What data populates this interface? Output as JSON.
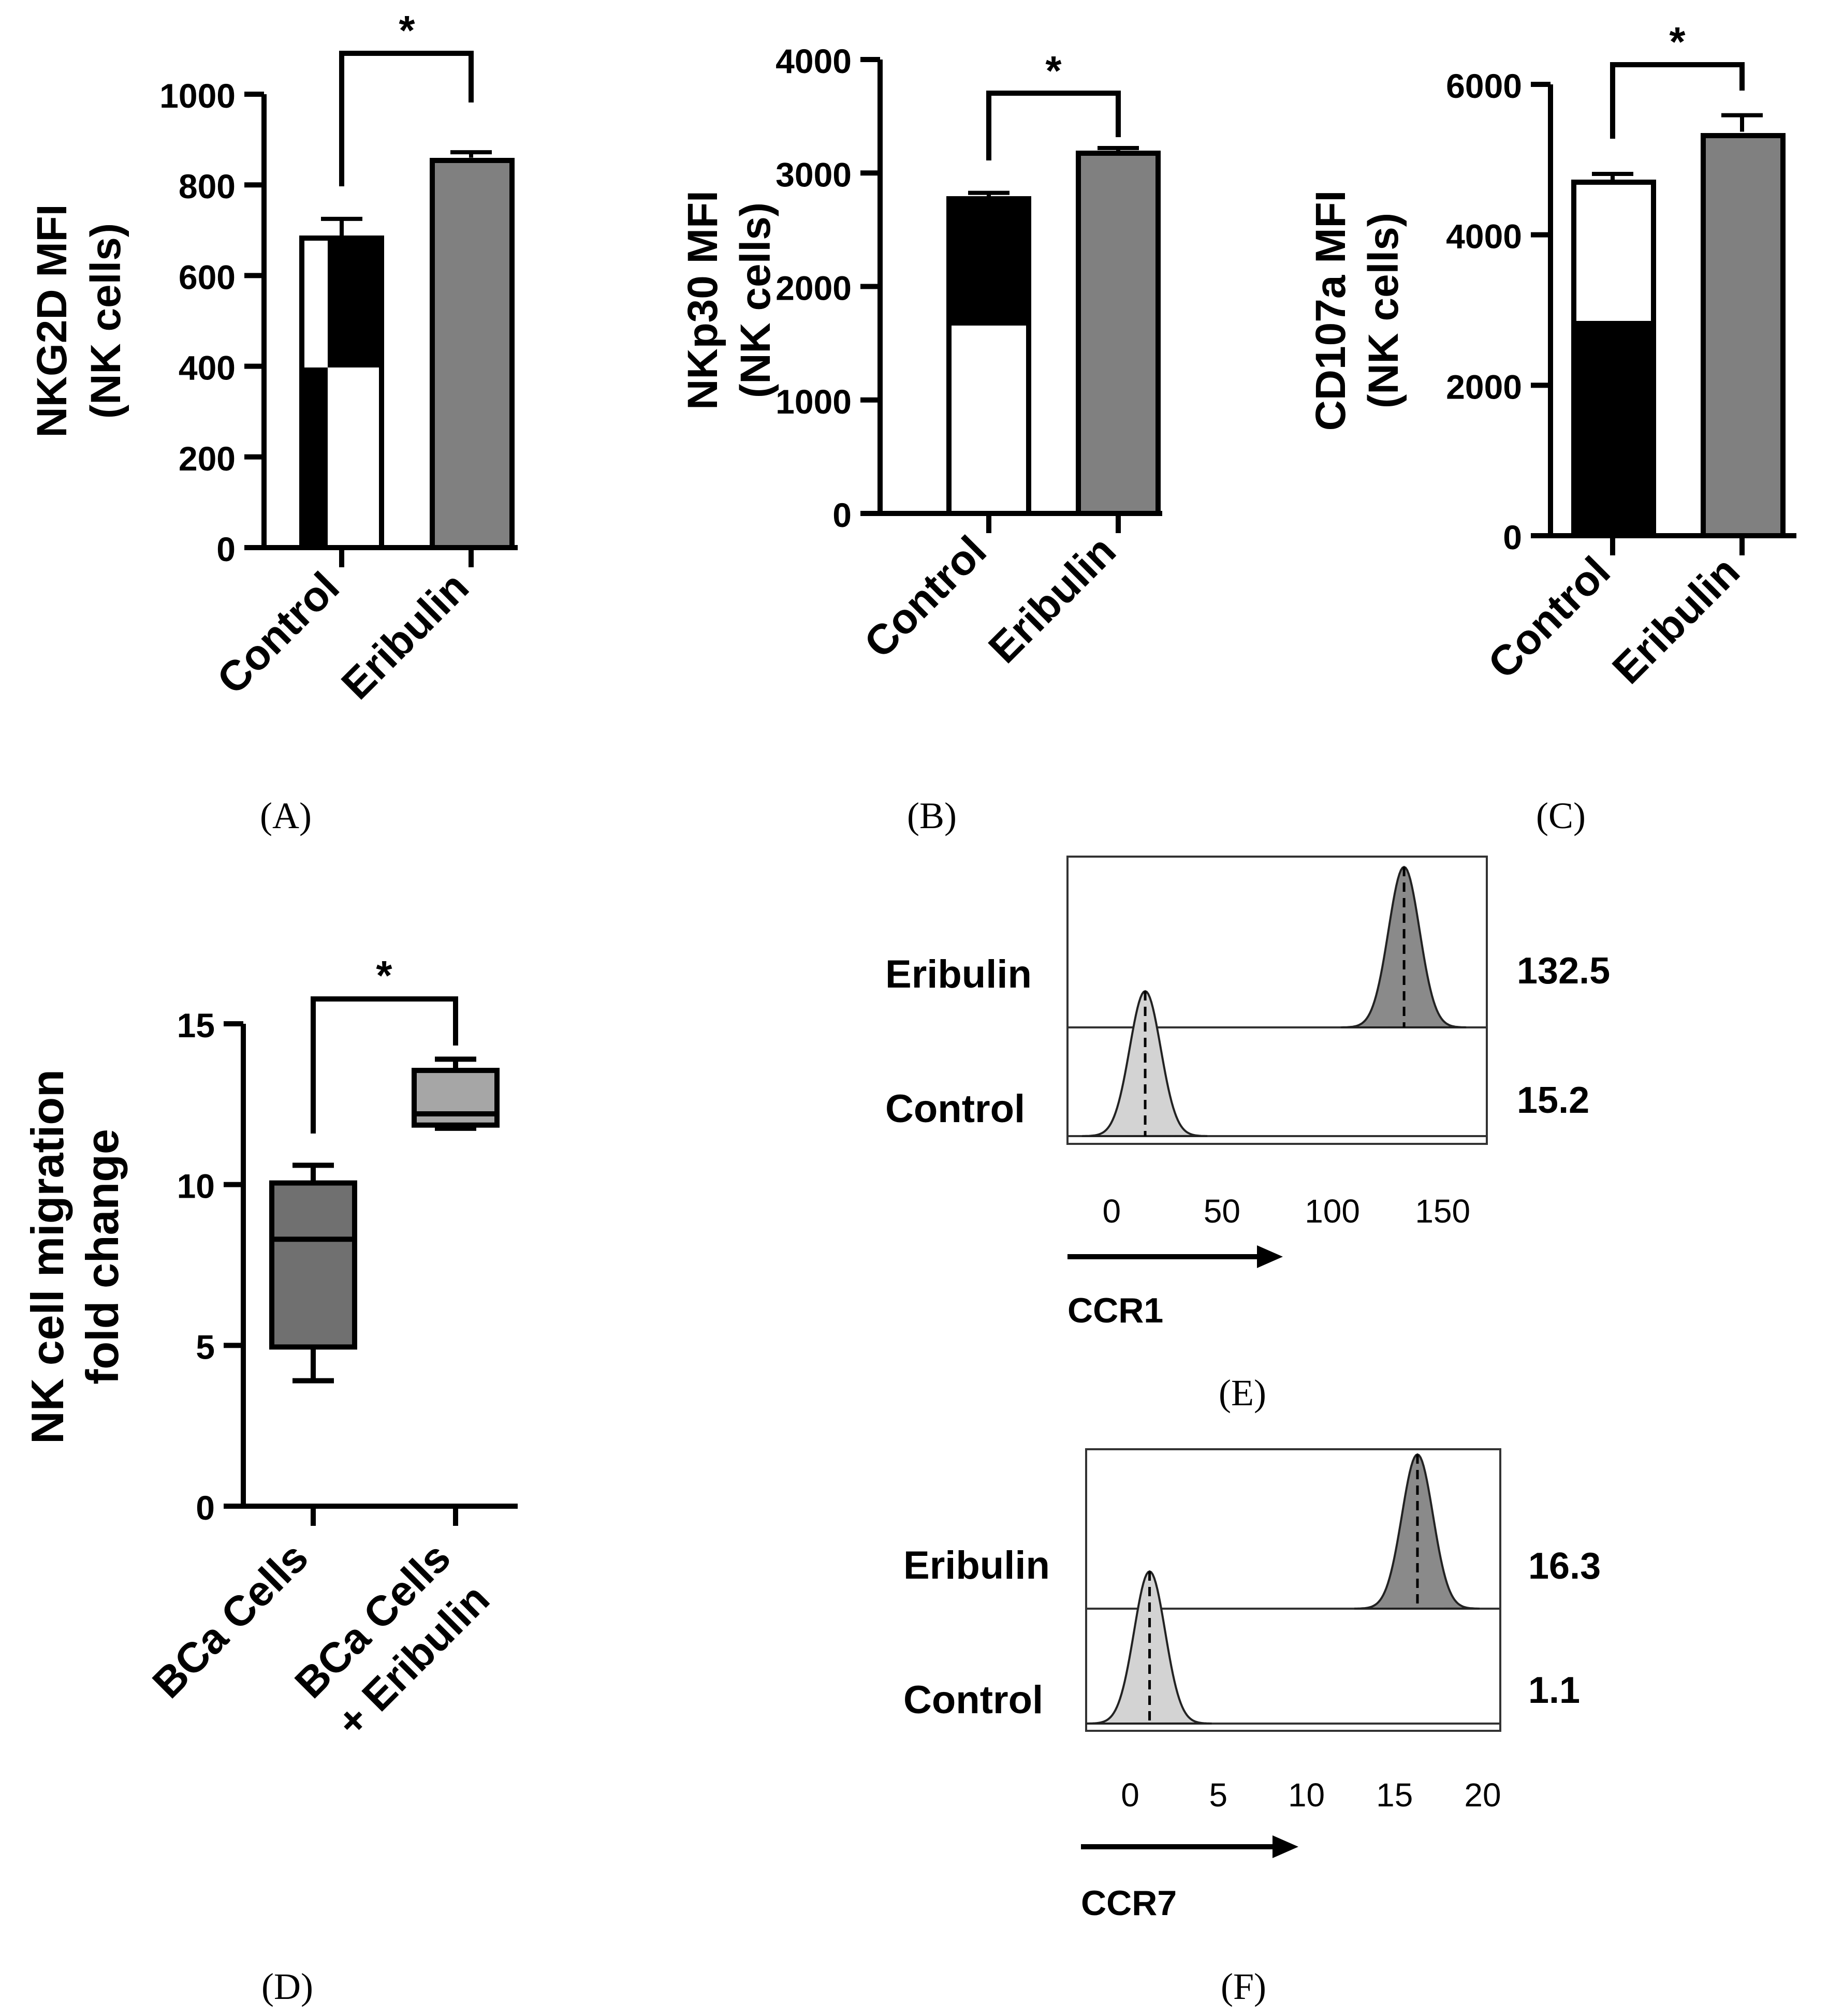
{
  "figure_labels": {
    "A": "(A)",
    "B": "(B)",
    "C": "(C)",
    "D": "(D)",
    "E": "(E)",
    "F": "(F)"
  },
  "colors": {
    "eribulin_bar": "#808080",
    "box_control": "#707070",
    "box_eribulin": "#a6a6a6",
    "hist_control": "#d3d3d3",
    "hist_eribulin": "#8a8a8a"
  },
  "chart_data": [
    {
      "id": "A",
      "type": "bar",
      "ylabel_line1": "NKG2D MFI",
      "ylabel_line2": "(NK cells)",
      "categories": [
        "Control",
        "Eribulin"
      ],
      "values": [
        685,
        860
      ],
      "errors": [
        40,
        12
      ],
      "ylim": [
        0,
        1000
      ],
      "yticks": [
        "0",
        "200",
        "400",
        "600",
        "800",
        "1000"
      ],
      "significance": "*"
    },
    {
      "id": "B",
      "type": "bar",
      "ylabel_line1": "NKp30 MFI",
      "ylabel_line2": "(NK cells)",
      "categories": [
        "Control",
        "Eribulin"
      ],
      "values": [
        2780,
        3190
      ],
      "errors": [
        45,
        30
      ],
      "ylim": [
        0,
        4000
      ],
      "yticks": [
        "0",
        "1000",
        "2000",
        "3000",
        "4000"
      ],
      "significance": "*"
    },
    {
      "id": "C",
      "type": "bar",
      "ylabel_line1": "CD107a MFI",
      "ylabel_line2": "(NK cells)",
      "categories": [
        "Control",
        "Eribulin"
      ],
      "values": [
        4720,
        5370
      ],
      "errors": [
        90,
        220
      ],
      "ylim": [
        0,
        6000
      ],
      "yticks": [
        "0",
        "2000",
        "4000",
        "6000"
      ],
      "significance": "*"
    },
    {
      "id": "D",
      "type": "box",
      "ylabel_line1": "NK cell migration",
      "ylabel_line2": "fold change",
      "categories": [
        {
          "line1": "BCa Cells",
          "line2": ""
        },
        {
          "line1": "BCa Cells",
          "line2": "+ Eribulin"
        }
      ],
      "boxes": [
        {
          "min": 3.9,
          "q1": 4.95,
          "median": 8.3,
          "q3": 10.05,
          "max": 10.6
        },
        {
          "min": 11.75,
          "q1": 11.85,
          "median": 12.2,
          "q3": 13.55,
          "max": 13.9
        }
      ],
      "ylim": [
        0,
        15
      ],
      "yticks": [
        "0",
        "5",
        "10",
        "15"
      ],
      "significance": "*"
    },
    {
      "id": "E",
      "type": "histogram",
      "marker": "CCR1",
      "xlim": [
        -20,
        170
      ],
      "xticks": [
        "0",
        "50",
        "100",
        "150"
      ],
      "rows": [
        {
          "name": "Eribulin",
          "value": "132.5",
          "peak": 132.5
        },
        {
          "name": "Control",
          "value": "15.2",
          "peak": 15.2
        }
      ]
    },
    {
      "id": "F",
      "type": "histogram",
      "marker": "CCR7",
      "xlim": [
        -2.5,
        21
      ],
      "xticks": [
        "0",
        "5",
        "10",
        "15",
        "20"
      ],
      "rows": [
        {
          "name": "Eribulin",
          "value": "16.3",
          "peak": 16.3
        },
        {
          "name": "Control",
          "value": "1.1",
          "peak": 1.1
        }
      ]
    }
  ]
}
